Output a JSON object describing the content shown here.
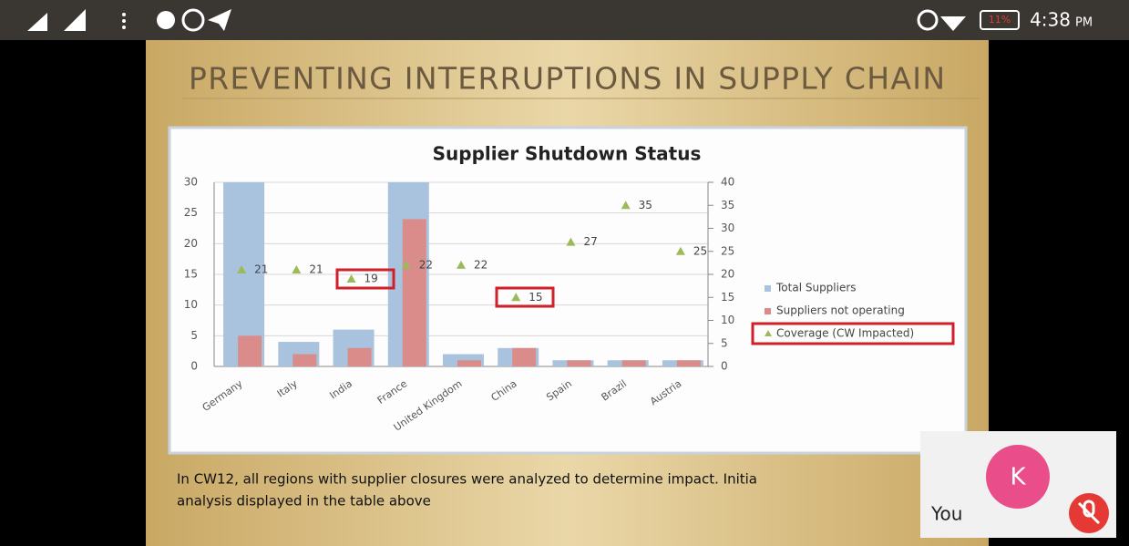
{
  "status_bar": {
    "battery": "11%",
    "time": "4:38",
    "period": "PM"
  },
  "slide": {
    "title": "PREVENTING INTERRUPTIONS IN SUPPLY CHAIN",
    "caption": [
      "In CW12, all regions with supplier closures were analyzed to determine impact. Initia",
      "analysis displayed in the table above"
    ]
  },
  "chart_data": {
    "type": "bar",
    "title": "Supplier Shutdown Status",
    "categories": [
      "Germany",
      "Italy",
      "India",
      "France",
      "United Kingdom",
      "China",
      "Spain",
      "Brazil",
      "Austria"
    ],
    "series": [
      {
        "name": "Total Suppliers",
        "color": "#a9c2de",
        "values": [
          30,
          4,
          6,
          30,
          2,
          3,
          1,
          1,
          1
        ]
      },
      {
        "name": "Suppliers not operating",
        "color": "#d98c8a",
        "values": [
          5,
          2,
          3,
          24,
          1,
          3,
          1,
          1,
          1
        ]
      },
      {
        "name": "Coverage (CW Impacted)",
        "color": "#9bbb59",
        "type": "scatter",
        "axis": "y2",
        "values": [
          21,
          21,
          19,
          22,
          22,
          15,
          27,
          35,
          25
        ]
      }
    ],
    "ylim": [
      0,
      30
    ],
    "yticks": [
      0,
      5,
      10,
      15,
      20,
      25,
      30
    ],
    "y2lim": [
      0,
      40
    ],
    "y2ticks": [
      0,
      5,
      10,
      15,
      20,
      25,
      30,
      35,
      40
    ],
    "grid": true,
    "legend": "right"
  },
  "call": {
    "avatar": "K",
    "name": "You"
  }
}
